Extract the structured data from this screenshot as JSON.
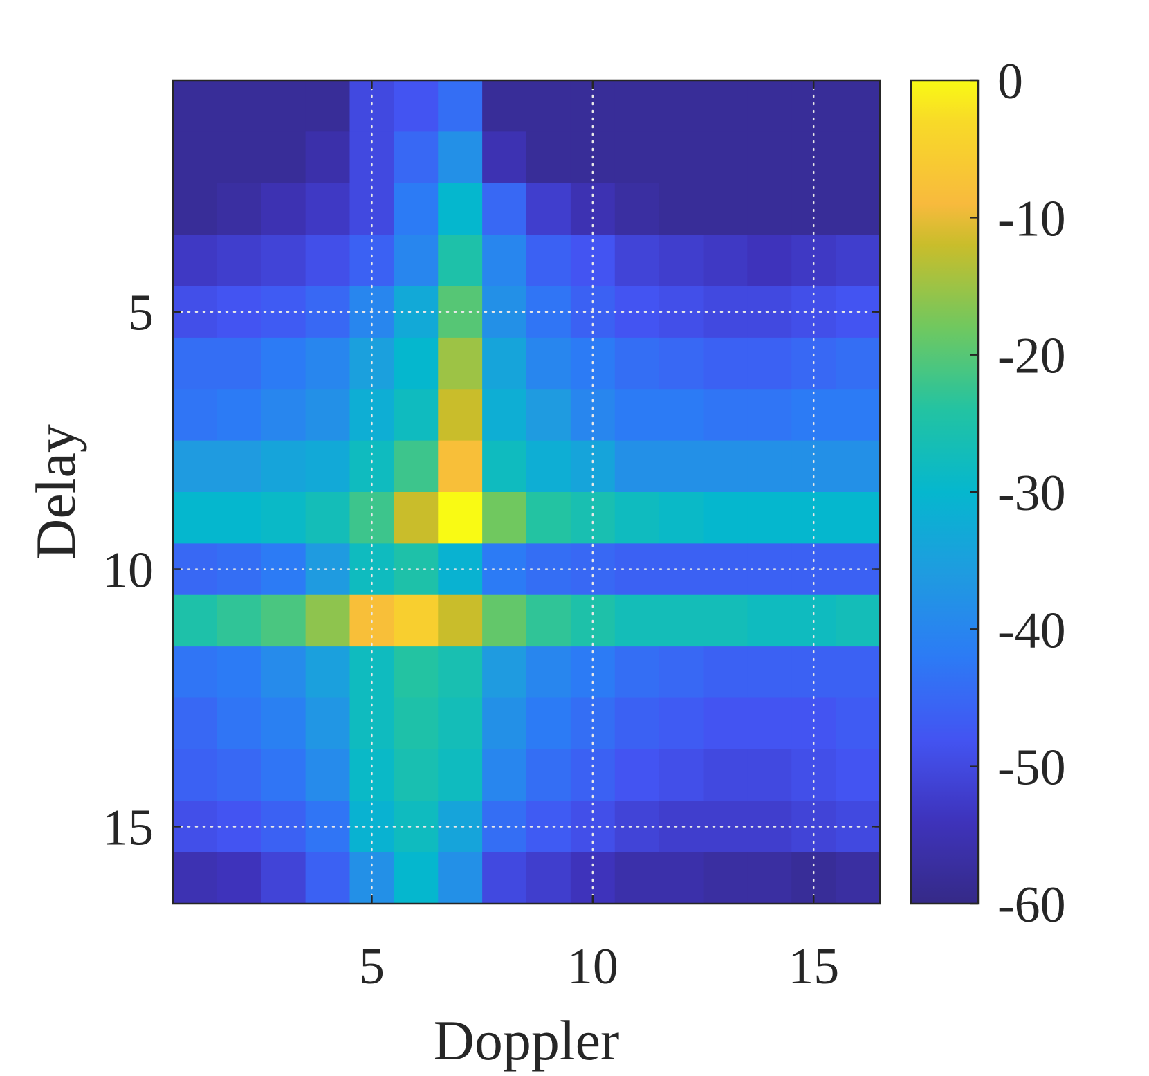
{
  "chart_data": {
    "type": "heatmap",
    "title": "",
    "xlabel": "Doppler",
    "ylabel": "Delay",
    "x_range": [
      0.5,
      16.5
    ],
    "y_range": [
      0.5,
      16.5
    ],
    "y_direction": "top-down",
    "xticks": [
      5,
      10,
      15
    ],
    "yticks": [
      5,
      10,
      15
    ],
    "grid": true,
    "colormap": "parula",
    "colorbar": {
      "range": [
        -60,
        0
      ],
      "ticks": [
        0,
        -10,
        -20,
        -30,
        -40,
        -50,
        -60
      ],
      "placement": "right"
    },
    "values": [
      [
        -58,
        -58,
        -58,
        -58,
        -50,
        -48,
        -44,
        -58,
        -58,
        -58,
        -58,
        -58,
        -58,
        -58,
        -58,
        -58
      ],
      [
        -58,
        -58,
        -58,
        -56,
        -50,
        -45,
        -38,
        -55,
        -58,
        -58,
        -58,
        -58,
        -58,
        -58,
        -58,
        -58
      ],
      [
        -58,
        -57,
        -55,
        -53,
        -50,
        -42,
        -30,
        -45,
        -52,
        -55,
        -57,
        -58,
        -58,
        -58,
        -58,
        -58
      ],
      [
        -53,
        -52,
        -51,
        -49,
        -46,
        -40,
        -25,
        -40,
        -46,
        -48,
        -51,
        -52,
        -53,
        -54,
        -53,
        -52
      ],
      [
        -49,
        -48,
        -47,
        -45,
        -40,
        -33,
        -20,
        -38,
        -43,
        -46,
        -48,
        -49,
        -50,
        -50,
        -49,
        -48
      ],
      [
        -44,
        -44,
        -42,
        -40,
        -35,
        -30,
        -15,
        -34,
        -40,
        -42,
        -44,
        -45,
        -46,
        -46,
        -45,
        -44
      ],
      [
        -43,
        -42,
        -40,
        -38,
        -32,
        -28,
        -12,
        -32,
        -36,
        -40,
        -42,
        -42,
        -43,
        -43,
        -42,
        -42
      ],
      [
        -36,
        -36,
        -34,
        -33,
        -28,
        -22,
        -8,
        -28,
        -32,
        -34,
        -38,
        -38,
        -38,
        -38,
        -38,
        -38
      ],
      [
        -30,
        -30,
        -29,
        -27,
        -22,
        -12,
        0,
        -18,
        -24,
        -26,
        -28,
        -29,
        -30,
        -30,
        -30,
        -30
      ],
      [
        -45,
        -44,
        -42,
        -36,
        -28,
        -25,
        -31,
        -42,
        -44,
        -45,
        -46,
        -46,
        -46,
        -46,
        -46,
        -46
      ],
      [
        -25,
        -23,
        -21,
        -16,
        -8,
        -5,
        -12,
        -19,
        -23,
        -25,
        -27,
        -27,
        -27,
        -28,
        -28,
        -27
      ],
      [
        -43,
        -42,
        -39,
        -35,
        -28,
        -24,
        -26,
        -36,
        -40,
        -42,
        -44,
        -45,
        -46,
        -46,
        -46,
        -46
      ],
      [
        -45,
        -43,
        -41,
        -37,
        -28,
        -25,
        -27,
        -38,
        -42,
        -44,
        -46,
        -47,
        -48,
        -48,
        -48,
        -47
      ],
      [
        -46,
        -45,
        -43,
        -39,
        -29,
        -26,
        -28,
        -40,
        -44,
        -46,
        -48,
        -49,
        -50,
        -50,
        -49,
        -48
      ],
      [
        -49,
        -48,
        -46,
        -43,
        -31,
        -28,
        -34,
        -44,
        -47,
        -49,
        -51,
        -52,
        -52,
        -52,
        -51,
        -50
      ],
      [
        -55,
        -54,
        -51,
        -46,
        -38,
        -30,
        -38,
        -50,
        -52,
        -54,
        -56,
        -56,
        -57,
        -57,
        -58,
        -57
      ]
    ]
  }
}
